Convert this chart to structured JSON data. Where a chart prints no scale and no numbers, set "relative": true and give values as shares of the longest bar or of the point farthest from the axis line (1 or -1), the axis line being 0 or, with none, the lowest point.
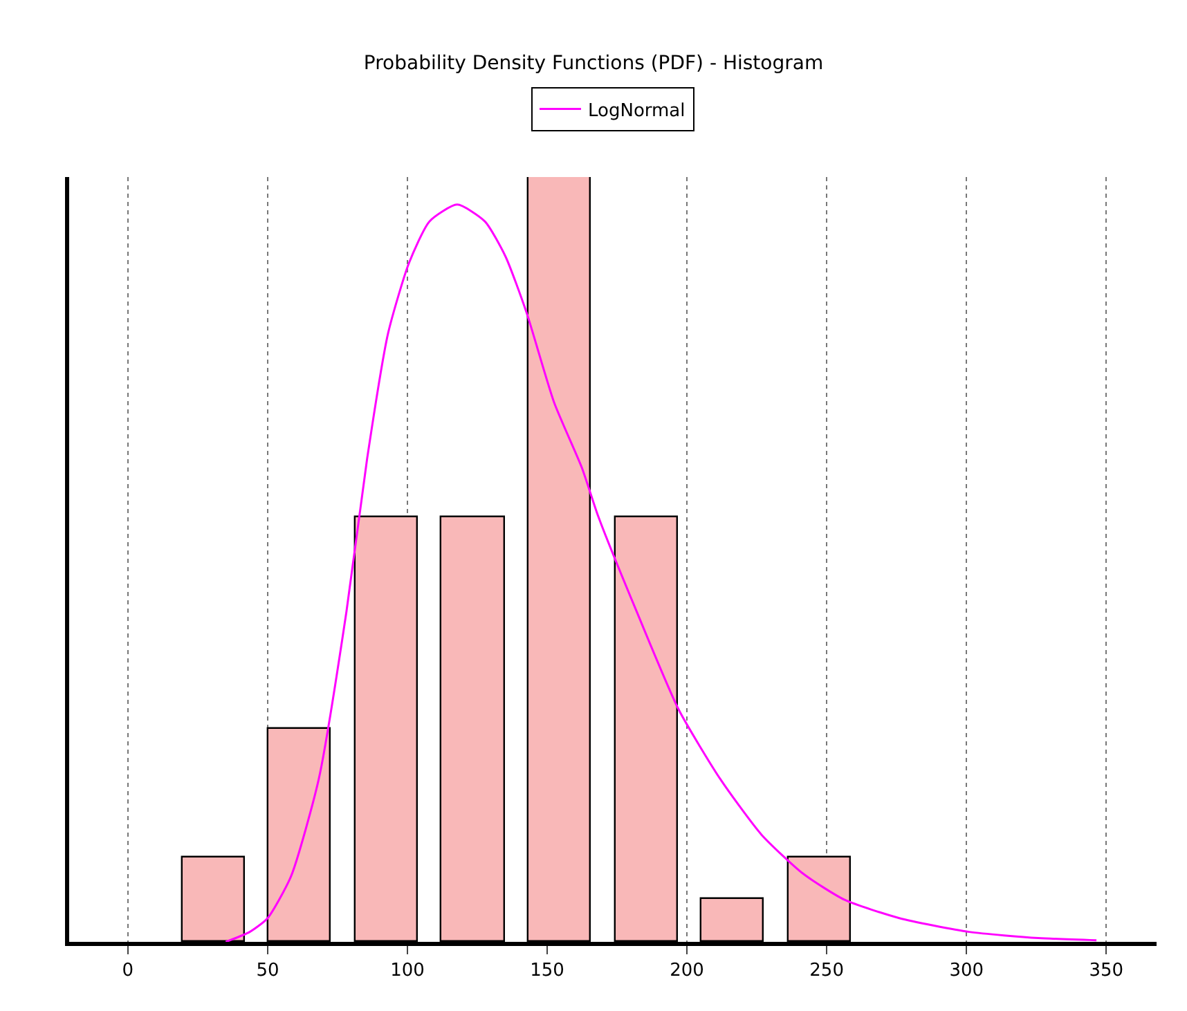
{
  "chart_data": {
    "type": "histogram",
    "title": "Probability Density Functions (PDF) - Histogram",
    "relative": true,
    "series": [
      {
        "type": "histogram",
        "color": "#f9b8b8",
        "bins": [
          15,
          46,
          77,
          108,
          139,
          170,
          201,
          232,
          263
        ],
        "values": [
          0.111,
          0.278,
          0.556,
          0.556,
          1,
          0.556,
          0.056,
          0.111
        ]
      },
      {
        "type": "line",
        "name": "LogNormal",
        "color": "#ff00ff",
        "x": [
          35,
          43.6,
          50,
          58.4,
          68.3,
          78.2,
          85.6,
          93.1,
          100.5,
          107.9,
          117.8,
          127.7,
          135.1,
          142.6,
          152.5,
          162.4,
          168.3,
          182,
          197,
          211.9,
          226.7,
          241.6,
          256.4,
          276,
          301,
          325.7,
          346.5
        ],
        "values": [
          0,
          0.013,
          0.031,
          0.086,
          0.213,
          0.432,
          0.632,
          0.796,
          0.887,
          0.942,
          0.964,
          0.942,
          0.896,
          0.823,
          0.705,
          0.62,
          0.556,
          0.432,
          0.304,
          0.213,
          0.14,
          0.089,
          0.055,
          0.031,
          0.013,
          0.005,
          0.002
        ]
      }
    ],
    "xlim": [
      -21,
      368
    ],
    "xticks": [
      0,
      50,
      100,
      150,
      200,
      250,
      300,
      350
    ],
    "grid": "x",
    "legend": "top"
  }
}
